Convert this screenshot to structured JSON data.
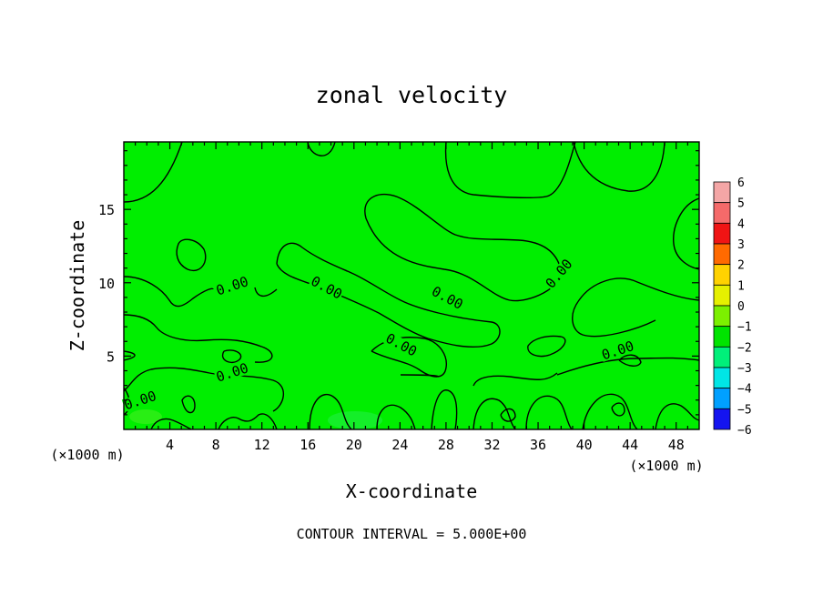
{
  "chart_data": {
    "type": "heatmap",
    "title": "zonal velocity",
    "xlabel": "X-coordinate",
    "ylabel": "Z-coordinate",
    "x_unit_left": "(×1000 m)",
    "x_unit_right": "(×1000 m)",
    "xlim": [
      0,
      50
    ],
    "ylim": [
      0,
      19.6
    ],
    "x_ticks": [
      4,
      8,
      12,
      16,
      20,
      24,
      28,
      32,
      36,
      40,
      44,
      48
    ],
    "x_tick_labels": [
      "4",
      "8",
      "12",
      "16",
      "20",
      "24",
      "28",
      "32",
      "36",
      "40",
      "44",
      "48"
    ],
    "y_ticks": [
      5,
      10,
      15
    ],
    "y_tick_labels": [
      "5",
      "10",
      "15"
    ],
    "contour_interval_text": "CONTOUR INTERVAL = 5.000E+00",
    "contour_labels": [
      {
        "text": "0.00",
        "x": 9.5,
        "z": 9.6
      },
      {
        "text": "0.00",
        "x": 17.5,
        "z": 9.5
      },
      {
        "text": "0.00",
        "x": 28.0,
        "z": 8.8
      },
      {
        "text": "0.00",
        "x": 24.0,
        "z": 5.6
      },
      {
        "text": "0.00",
        "x": 9.5,
        "z": 3.7
      },
      {
        "text": "0.00",
        "x": 1.5,
        "z": 1.8
      },
      {
        "text": "0.00",
        "x": 38.0,
        "z": 10.5
      },
      {
        "text": "0.00",
        "x": 43.0,
        "z": 5.2
      }
    ],
    "field_value_typical": 0,
    "grid": false,
    "colorbar": {
      "placement": "right",
      "levels": [
        {
          "label": "6",
          "color": "#f4a6a6"
        },
        {
          "label": "5",
          "color": "#f56a6a"
        },
        {
          "label": "4",
          "color": "#f01414"
        },
        {
          "label": "3",
          "color": "#ff6a00"
        },
        {
          "label": "2",
          "color": "#ffd200"
        },
        {
          "label": "1",
          "color": "#e6f000"
        },
        {
          "label": "0",
          "color": "#7cf000"
        },
        {
          "label": "−1",
          "color": "#00e400"
        },
        {
          "label": "−2",
          "color": "#00f07a"
        },
        {
          "label": "−3",
          "color": "#00e6e6"
        },
        {
          "label": "−4",
          "color": "#00a0ff"
        },
        {
          "label": "−5",
          "color": "#1414f0"
        },
        {
          "label": "−6",
          "color": "#0000a0"
        }
      ],
      "bin_colors": [
        "#f4a6a6",
        "#f56a6a",
        "#f01414",
        "#ff6a00",
        "#ffd200",
        "#e6f000",
        "#7cf000",
        "#00e400",
        "#00f07a",
        "#00e6e6",
        "#00a0ff",
        "#1414f0",
        "#6a00a0"
      ]
    },
    "field_color": "#00ee00"
  }
}
